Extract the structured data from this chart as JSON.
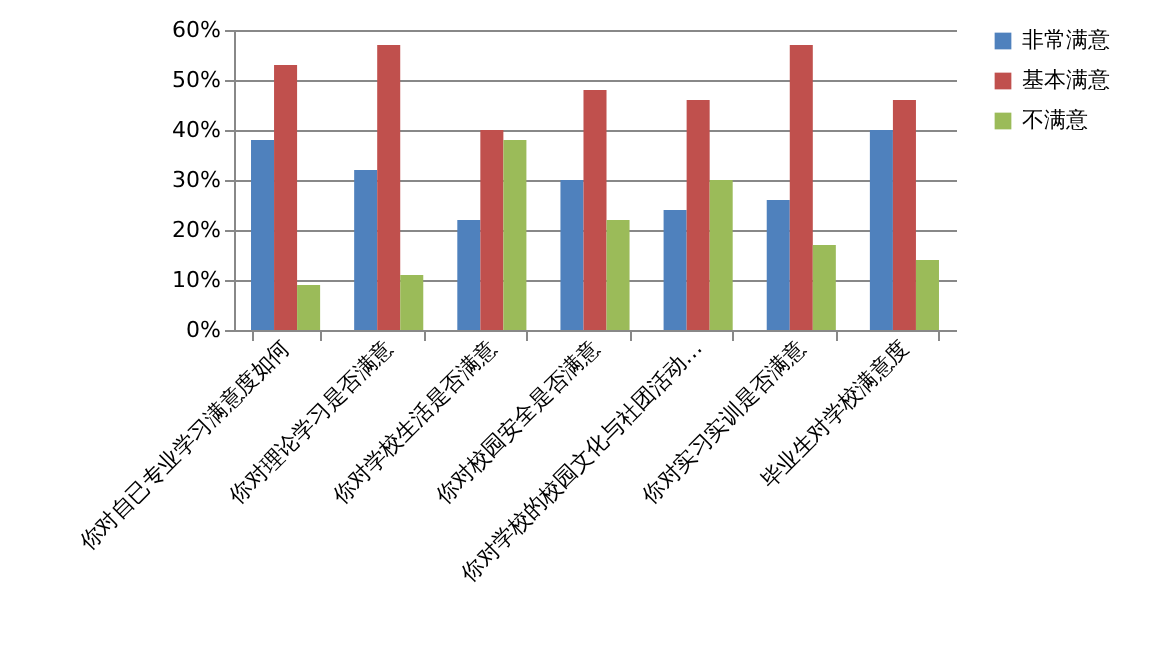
{
  "chart_data": {
    "type": "bar",
    "categories": [
      "你对自已专业学习满意度如何",
      "你对理论学习是否满意",
      "你对学校生活是否满意",
      "你对校园安全是否满意",
      "你对学校的校园文化与社团活动…",
      "你对实习实训是否满意",
      "毕业生对学校满意度"
    ],
    "series": [
      {
        "name": "非常满意",
        "color": "#4f81bd",
        "values": [
          38,
          32,
          22,
          30,
          24,
          26,
          40
        ]
      },
      {
        "name": "基本满意",
        "color": "#c0504d",
        "values": [
          53,
          57,
          40,
          48,
          46,
          57,
          46
        ]
      },
      {
        "name": "不满意",
        "color": "#9bbb59",
        "values": [
          9,
          11,
          38,
          22,
          30,
          17,
          14
        ]
      }
    ],
    "ylim": [
      0,
      60
    ],
    "yticks": [
      {
        "value": 0,
        "label": "0%"
      },
      {
        "value": 10,
        "label": "10%"
      },
      {
        "value": 20,
        "label": "20%"
      },
      {
        "value": 30,
        "label": "30%"
      },
      {
        "value": 40,
        "label": "40%"
      },
      {
        "value": 50,
        "label": "50%"
      },
      {
        "value": 60,
        "label": "60%"
      }
    ],
    "grid": "y",
    "legend": "right"
  }
}
